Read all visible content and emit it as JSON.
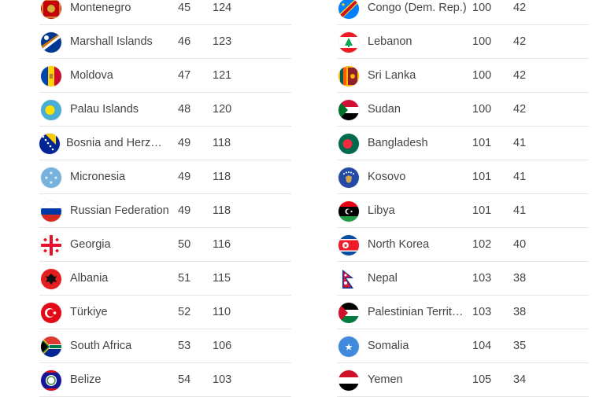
{
  "left_rows": [
    {
      "country": "Montenegro",
      "rank": "45",
      "score": "124",
      "flag_icon": "montenegro-flag-icon"
    },
    {
      "country": "Marshall Islands",
      "rank": "46",
      "score": "123",
      "flag_icon": "marshall-islands-flag-icon"
    },
    {
      "country": "Moldova",
      "rank": "47",
      "score": "121",
      "flag_icon": "moldova-flag-icon"
    },
    {
      "country": "Palau Islands",
      "rank": "48",
      "score": "120",
      "flag_icon": "palau-flag-icon"
    },
    {
      "country": "Bosnia and Herze…",
      "rank": "49",
      "score": "118",
      "flag_icon": "bosnia-flag-icon"
    },
    {
      "country": "Micronesia",
      "rank": "49",
      "score": "118",
      "flag_icon": "micronesia-flag-icon"
    },
    {
      "country": "Russian Federation",
      "rank": "49",
      "score": "118",
      "flag_icon": "russia-flag-icon"
    },
    {
      "country": "Georgia",
      "rank": "50",
      "score": "116",
      "flag_icon": "georgia-flag-icon"
    },
    {
      "country": "Albania",
      "rank": "51",
      "score": "115",
      "flag_icon": "albania-flag-icon"
    },
    {
      "country": "Türkiye",
      "rank": "52",
      "score": "110",
      "flag_icon": "turkiye-flag-icon"
    },
    {
      "country": "South Africa",
      "rank": "53",
      "score": "106",
      "flag_icon": "south-africa-flag-icon"
    },
    {
      "country": "Belize",
      "rank": "54",
      "score": "103",
      "flag_icon": "belize-flag-icon"
    }
  ],
  "right_rows": [
    {
      "country": "Congo (Dem. Rep.)",
      "rank": "100",
      "score": "42",
      "flag_icon": "congo-drc-flag-icon"
    },
    {
      "country": "Lebanon",
      "rank": "100",
      "score": "42",
      "flag_icon": "lebanon-flag-icon"
    },
    {
      "country": "Sri Lanka",
      "rank": "100",
      "score": "42",
      "flag_icon": "sri-lanka-flag-icon"
    },
    {
      "country": "Sudan",
      "rank": "100",
      "score": "42",
      "flag_icon": "sudan-flag-icon"
    },
    {
      "country": "Bangladesh",
      "rank": "101",
      "score": "41",
      "flag_icon": "bangladesh-flag-icon"
    },
    {
      "country": "Kosovo",
      "rank": "101",
      "score": "41",
      "flag_icon": "kosovo-flag-icon"
    },
    {
      "country": "Libya",
      "rank": "101",
      "score": "41",
      "flag_icon": "libya-flag-icon"
    },
    {
      "country": "North Korea",
      "rank": "102",
      "score": "40",
      "flag_icon": "north-korea-flag-icon"
    },
    {
      "country": "Nepal",
      "rank": "103",
      "score": "38",
      "flag_icon": "nepal-flag-icon"
    },
    {
      "country": "Palestinian Territ…",
      "rank": "103",
      "score": "38",
      "flag_icon": "palestine-flag-icon"
    },
    {
      "country": "Somalia",
      "rank": "104",
      "score": "35",
      "flag_icon": "somalia-flag-icon"
    },
    {
      "country": "Yemen",
      "rank": "105",
      "score": "34",
      "flag_icon": "yemen-flag-icon"
    }
  ]
}
